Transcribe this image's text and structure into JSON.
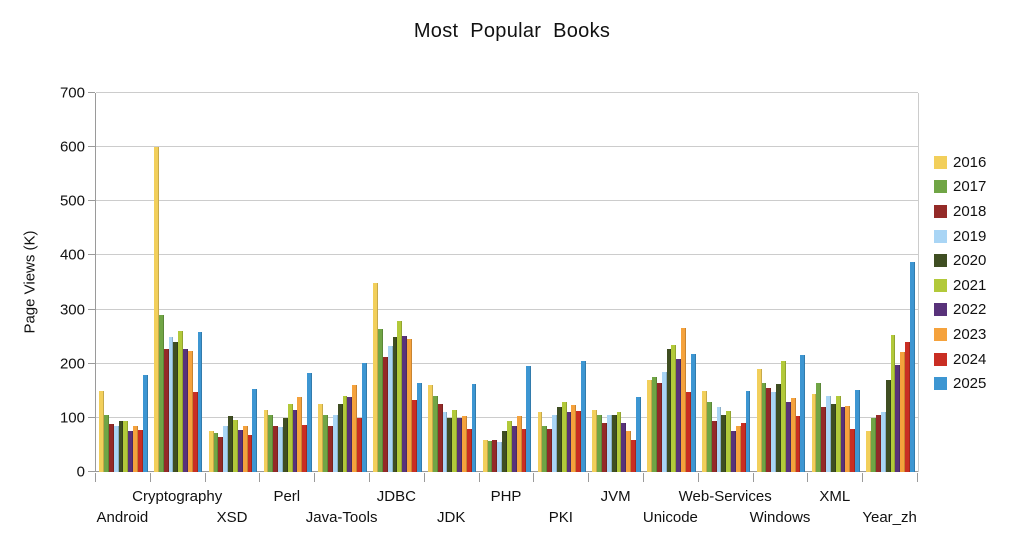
{
  "chart_data": {
    "type": "bar",
    "title": "Most Popular Books",
    "ylabel": "Page Views (K)",
    "ylim": [
      0,
      700
    ],
    "yticks": [
      0,
      100,
      200,
      300,
      400,
      500,
      600,
      700
    ],
    "grid": "horizontal",
    "legend_position": "right",
    "categories": [
      "Android",
      "Cryptography",
      "XSD",
      "Perl",
      "Java-Tools",
      "JDBC",
      "JDK",
      "PHP",
      "PKI",
      "JVM",
      "Unicode",
      "Web-Services",
      "Windows",
      "XML",
      "Year_zh"
    ],
    "series": [
      {
        "name": "2016",
        "color": "#F2CF5B",
        "values": [
          150,
          600,
          75,
          115,
          125,
          350,
          160,
          60,
          110,
          115,
          170,
          150,
          190,
          145,
          75
        ]
      },
      {
        "name": "2017",
        "color": "#70A545",
        "values": [
          105,
          290,
          72,
          105,
          105,
          265,
          140,
          57,
          85,
          105,
          175,
          130,
          165,
          165,
          100
        ]
      },
      {
        "name": "2018",
        "color": "#942A28",
        "values": [
          88,
          228,
          65,
          85,
          85,
          212,
          125,
          60,
          80,
          90,
          165,
          95,
          155,
          120,
          105
        ]
      },
      {
        "name": "2019",
        "color": "#A9D5F5",
        "values": [
          85,
          250,
          85,
          83,
          105,
          233,
          110,
          55,
          105,
          105,
          185,
          120,
          148,
          140,
          110
        ]
      },
      {
        "name": "2020",
        "color": "#3F4E22",
        "values": [
          95,
          240,
          103,
          100,
          125,
          250,
          100,
          75,
          120,
          106,
          228,
          105,
          162,
          125,
          170
        ]
      },
      {
        "name": "2021",
        "color": "#B2C93A",
        "values": [
          95,
          260,
          96,
          125,
          140,
          278,
          115,
          95,
          130,
          111,
          235,
          113,
          205,
          140,
          253
        ]
      },
      {
        "name": "2022",
        "color": "#58327A",
        "values": [
          75,
          228,
          78,
          115,
          139,
          251,
          99,
          85,
          110,
          90,
          208,
          76,
          130,
          120,
          198
        ]
      },
      {
        "name": "2023",
        "color": "#F5A23C",
        "values": [
          85,
          224,
          85,
          138,
          160,
          245,
          103,
          103,
          124,
          76,
          266,
          85,
          137,
          122,
          221
        ]
      },
      {
        "name": "2024",
        "color": "#C92E23",
        "values": [
          78,
          148,
          68,
          87,
          100,
          133,
          80,
          79,
          112,
          59,
          148,
          90,
          103,
          80,
          240
        ]
      },
      {
        "name": "2025",
        "color": "#3D96D2",
        "values": [
          180,
          258,
          153,
          183,
          202,
          165,
          163,
          195,
          205,
          139,
          218,
          150,
          217,
          152,
          388
        ]
      }
    ]
  }
}
